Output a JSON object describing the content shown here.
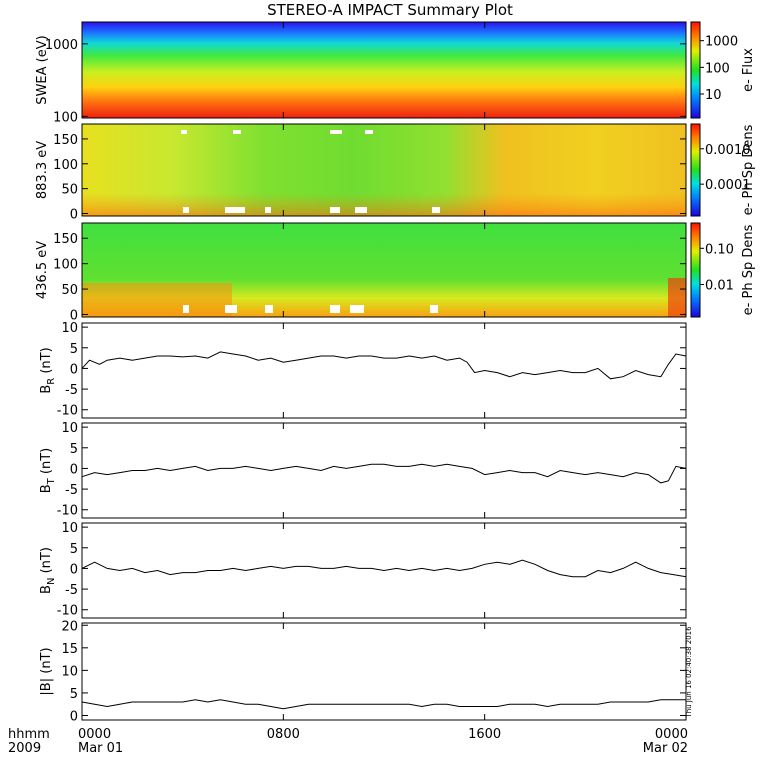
{
  "chart_data": {
    "type": "line",
    "title": "STEREO-A IMPACT Summary Plot",
    "time_axis": {
      "corner_label_1": "hhmm",
      "corner_label_2": "2009",
      "ticks": [
        {
          "t": 0,
          "label": "0000",
          "date": "Mar 01"
        },
        {
          "t": 8,
          "label": "0800",
          "date": ""
        },
        {
          "t": 16,
          "label": "1600",
          "date": ""
        },
        {
          "t": 24,
          "label": "0000",
          "date": "Mar 02"
        }
      ],
      "range_hours": [
        0,
        24
      ]
    },
    "side_timestamp": "Thu Jun 16 02:40:38 2016",
    "spectrograms": [
      {
        "ylabel": "SWEA (eV)",
        "scale": "log",
        "ylim": [
          95,
          2000
        ],
        "yticks": [
          "1000",
          "100"
        ],
        "colorbar_label": "e- Flux",
        "colorbar_ticks": [
          "1000",
          "100",
          "10"
        ]
      },
      {
        "ylabel": "883.3 eV",
        "scale": "linear",
        "ylim": [
          -5,
          180
        ],
        "yticks": [
          "150",
          "100",
          "50",
          "0"
        ],
        "colorbar_label": "e- Ph Sp Dens",
        "colorbar_ticks": [
          "0.0010",
          "0.0001"
        ]
      },
      {
        "ylabel": "436.5 eV",
        "scale": "linear",
        "ylim": [
          -5,
          180
        ],
        "yticks": [
          "150",
          "100",
          "50",
          "0"
        ],
        "colorbar_label": "e- Ph Sp Dens",
        "colorbar_ticks": [
          "0.10",
          "0.01"
        ]
      }
    ],
    "series": [
      {
        "name": "B",
        "sub": "R",
        "unit": "(nT)",
        "ylim": [
          -12,
          11
        ],
        "yticks": [
          "10",
          "5",
          "0",
          "-5",
          "-10"
        ],
        "x": [
          0,
          0.3,
          0.7,
          1,
          1.5,
          2,
          2.5,
          3,
          3.5,
          4,
          4.5,
          5,
          5.5,
          6,
          6.5,
          7,
          7.5,
          8,
          8.5,
          9,
          9.5,
          10,
          10.5,
          11,
          11.5,
          12,
          12.5,
          13,
          13.5,
          14,
          14.5,
          15,
          15.3,
          15.6,
          16,
          16.5,
          17,
          17.5,
          18,
          18.5,
          19,
          19.5,
          20,
          20.5,
          21,
          21.5,
          22,
          22.5,
          23,
          23.3,
          23.6,
          24
        ],
        "y": [
          0,
          2,
          1,
          2,
          2.5,
          2,
          2.5,
          3,
          3,
          2.8,
          3,
          2.5,
          4,
          3.5,
          3,
          2,
          2.5,
          1.5,
          2,
          2.5,
          3,
          3,
          2.5,
          3,
          3,
          2.5,
          2.5,
          3,
          2.5,
          3,
          2,
          2.5,
          1.5,
          -1,
          -0.5,
          -1,
          -2,
          -1,
          -1.5,
          -1,
          -0.5,
          -1,
          -1,
          0,
          -2.5,
          -2,
          -0.5,
          -1.5,
          -2,
          1,
          3.5,
          3
        ]
      },
      {
        "name": "B",
        "sub": "T",
        "unit": "(nT)",
        "ylim": [
          -12,
          11
        ],
        "yticks": [
          "10",
          "5",
          "0",
          "-5",
          "-10"
        ],
        "x": [
          0,
          0.5,
          1,
          1.5,
          2,
          2.5,
          3,
          3.5,
          4,
          4.5,
          5,
          5.5,
          6,
          6.5,
          7,
          7.5,
          8,
          8.5,
          9,
          9.5,
          10,
          10.5,
          11,
          11.5,
          12,
          12.5,
          13,
          13.5,
          14,
          14.5,
          15,
          15.5,
          16,
          16.5,
          17,
          17.5,
          18,
          18.5,
          19,
          19.5,
          20,
          20.5,
          21,
          21.5,
          22,
          22.5,
          23,
          23.3,
          23.6,
          24
        ],
        "y": [
          -2,
          -1,
          -1.5,
          -1,
          -0.5,
          -0.5,
          0,
          -0.5,
          0,
          0.5,
          -0.5,
          0,
          0,
          0.5,
          0,
          -0.5,
          0,
          0.5,
          0,
          -0.5,
          0.5,
          0,
          0.5,
          1,
          1,
          0.5,
          0.5,
          1,
          0.5,
          1,
          0.5,
          0,
          -1.5,
          -1,
          -0.5,
          -1,
          -1,
          -2,
          -0.5,
          -1,
          -1.5,
          -1,
          -1.5,
          -2,
          -1,
          -1.5,
          -3.5,
          -3,
          0.5,
          0
        ]
      },
      {
        "name": "B",
        "sub": "N",
        "unit": "(nT)",
        "ylim": [
          -12,
          11
        ],
        "yticks": [
          "10",
          "5",
          "0",
          "-5",
          "-10"
        ],
        "x": [
          0,
          0.5,
          1,
          1.5,
          2,
          2.5,
          3,
          3.5,
          4,
          4.5,
          5,
          5.5,
          6,
          6.5,
          7,
          7.5,
          8,
          8.5,
          9,
          9.5,
          10,
          10.5,
          11,
          11.5,
          12,
          12.5,
          13,
          13.5,
          14,
          14.5,
          15,
          15.5,
          16,
          16.5,
          17,
          17.5,
          18,
          18.5,
          19,
          19.5,
          20,
          20.5,
          21,
          21.5,
          22,
          22.5,
          23,
          23.5,
          24
        ],
        "y": [
          0,
          1.5,
          0,
          -0.5,
          0,
          -1,
          -0.5,
          -1.5,
          -1,
          -1,
          -0.5,
          -0.5,
          0,
          -0.5,
          0,
          0.5,
          0,
          0.5,
          0.5,
          0,
          0,
          0.5,
          0,
          0,
          -0.5,
          0,
          -0.5,
          0,
          -0.5,
          0,
          -0.5,
          0,
          1,
          1.5,
          1,
          2,
          1,
          -0.5,
          -1.5,
          -2,
          -2,
          -0.5,
          -1,
          0,
          1.5,
          0,
          -1,
          -1.5,
          -2
        ]
      },
      {
        "name": "|B|",
        "sub": "",
        "unit": "(nT)",
        "ylim": [
          -1,
          20.5
        ],
        "yticks": [
          "20",
          "15",
          "10",
          "5",
          "0"
        ],
        "x": [
          0,
          0.5,
          1,
          1.5,
          2,
          2.5,
          3,
          3.5,
          4,
          4.5,
          5,
          5.5,
          6,
          6.5,
          7,
          7.5,
          8,
          8.5,
          9,
          9.5,
          10,
          10.5,
          11,
          11.5,
          12,
          12.5,
          13,
          13.5,
          14,
          14.5,
          15,
          15.5,
          16,
          16.5,
          17,
          17.5,
          18,
          18.5,
          19,
          19.5,
          20,
          20.5,
          21,
          21.5,
          22,
          22.5,
          23,
          23.5,
          24
        ],
        "y": [
          3,
          2.5,
          2,
          2.5,
          3,
          3,
          3,
          3,
          3,
          3.5,
          3,
          3.5,
          3,
          2.5,
          2.5,
          2,
          1.5,
          2,
          2.5,
          2.5,
          2.5,
          2.5,
          2.5,
          2.5,
          2.5,
          2.5,
          2.5,
          2,
          2.5,
          2.5,
          2,
          2,
          2,
          2,
          2.5,
          2.5,
          2.5,
          2,
          2.5,
          2.5,
          2.5,
          2.5,
          3,
          3,
          3,
          3,
          3.5,
          3.5,
          3.5
        ]
      }
    ]
  }
}
